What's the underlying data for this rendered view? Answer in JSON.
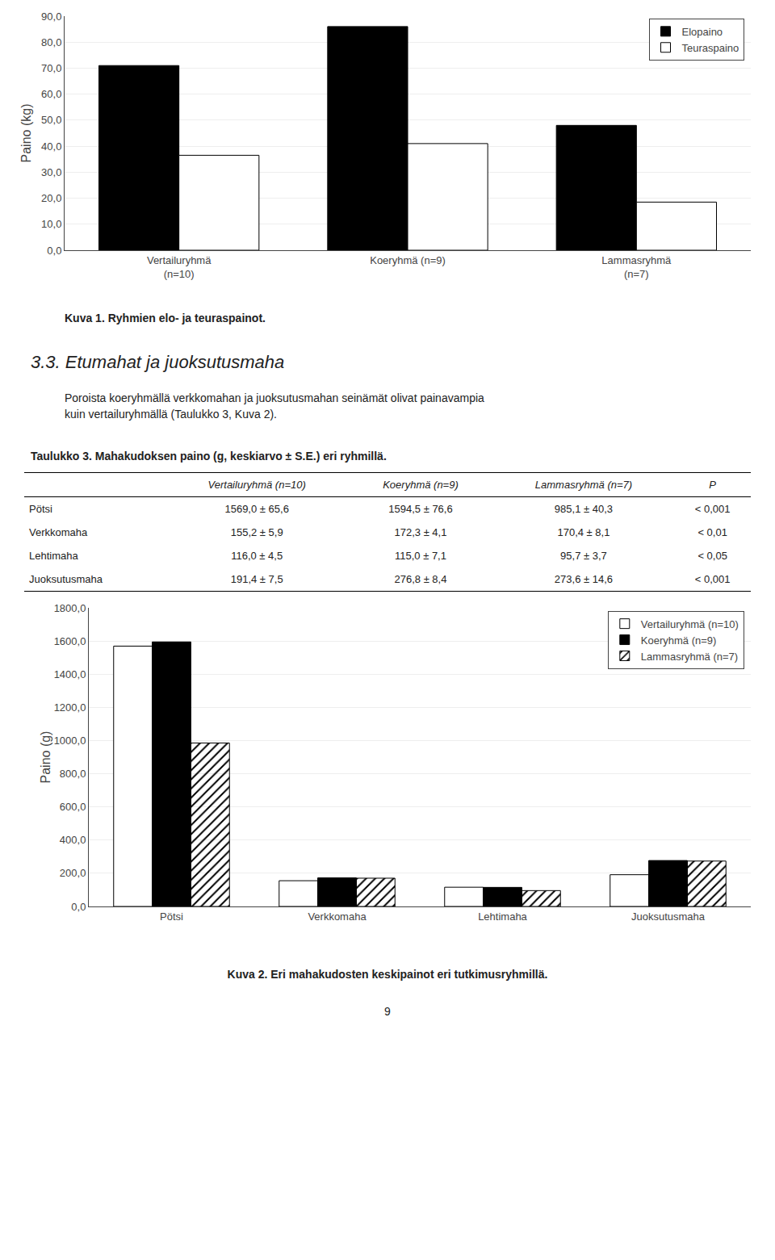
{
  "chart_data": [
    {
      "type": "bar",
      "title": "Kuva 1. Ryhmien elo- ja teuraspainot.",
      "ylabel": "Paino (kg)",
      "categories": [
        "Vertailuryhmä\n(n=10)",
        "Koeryhmä (n=9)",
        "Lammasryhmä\n(n=7)"
      ],
      "series": [
        {
          "name": "Elopaino",
          "color": "#000000",
          "values": [
            71.0,
            86.0,
            48.0
          ]
        },
        {
          "name": "Teuraspaino",
          "color": "#ffffff",
          "values": [
            36.5,
            41.0,
            18.5
          ]
        }
      ],
      "ylim": [
        0,
        90
      ],
      "yticks": [
        {
          "value": 0,
          "label": "0,0"
        },
        {
          "value": 10,
          "label": "10,0"
        },
        {
          "value": 20,
          "label": "20,0"
        },
        {
          "value": 30,
          "label": "30,0"
        },
        {
          "value": 40,
          "label": "40,0"
        },
        {
          "value": 50,
          "label": "50,0"
        },
        {
          "value": 60,
          "label": "60,0"
        },
        {
          "value": 70,
          "label": "70,0"
        },
        {
          "value": 80,
          "label": "80,0"
        },
        {
          "value": 90,
          "label": "90,0"
        }
      ],
      "grid": true,
      "legend": "upper right"
    },
    {
      "type": "table",
      "title": "Taulukko 3. Mahakudoksen paino (g, keskiarvo ± S.E.) eri ryhmillä.",
      "columns": [
        null,
        "Vertailuryhmä (n=10)",
        "Koeryhmä (n=9)",
        "Lammasryhmä (n=7)",
        "P"
      ],
      "rows": [
        [
          "Pötsi",
          "1569,0 ± 65,6",
          "1594,5 ± 76,6",
          "985,1 ± 40,3",
          "< 0,001"
        ],
        [
          "Verkkomaha",
          "155,2 ± 5,9",
          "172,3 ± 4,1",
          "170,4 ± 8,1",
          "< 0,01"
        ],
        [
          "Lehtimaha",
          "116,0 ± 4,5",
          "115,0 ± 7,1",
          "95,7 ± 3,7",
          "< 0,05"
        ],
        [
          "Juoksutusmaha",
          "191,4 ± 7,5",
          "276,8 ± 8,4",
          "273,6 ± 14,6",
          "< 0,001"
        ]
      ]
    },
    {
      "type": "bar",
      "title": "Kuva 2. Eri mahakudosten keskipainot eri tutkimusryhmillä.",
      "ylabel": "Paino (g)",
      "categories": [
        "Pötsi",
        "Verkkomaha",
        "Lehtimaha",
        "Juoksutusmaha"
      ],
      "series": [
        {
          "name": "Vertailuryhmä (n=10)",
          "color": "#ffffff",
          "values": [
            1569.0,
            155.2,
            116.0,
            191.4
          ]
        },
        {
          "name": "Koeryhmä (n=9)",
          "color": "#000000",
          "values": [
            1594.5,
            172.3,
            115.0,
            276.8
          ]
        },
        {
          "name": "Lammasryhmä (n=7)",
          "color": "#b0b0b0",
          "marker": "hatched",
          "values": [
            985.1,
            170.4,
            95.7,
            273.6
          ]
        }
      ],
      "ylim": [
        0,
        1800
      ],
      "yticks": [
        {
          "value": 0,
          "label": "0,0"
        },
        {
          "value": 200,
          "label": "200,0"
        },
        {
          "value": 400,
          "label": "400,0"
        },
        {
          "value": 600,
          "label": "600,0"
        },
        {
          "value": 800,
          "label": "800,0"
        },
        {
          "value": 1000,
          "label": "1000,0"
        },
        {
          "value": 1200,
          "label": "1200,0"
        },
        {
          "value": 1400,
          "label": "1400,0"
        },
        {
          "value": 1600,
          "label": "1600,0"
        },
        {
          "value": 1800,
          "label": "1800,0"
        }
      ],
      "grid": true,
      "legend": "upper right"
    }
  ],
  "section_title": "3.3. Etumahat ja juoksutusmaha",
  "section_text": "Poroista koeryhmällä verkkomahan ja juoksutusmahan seinämät olivat painavampia\nkuin vertailuryhmällä (Taulukko 3, Kuva 2).",
  "page_number": "9"
}
